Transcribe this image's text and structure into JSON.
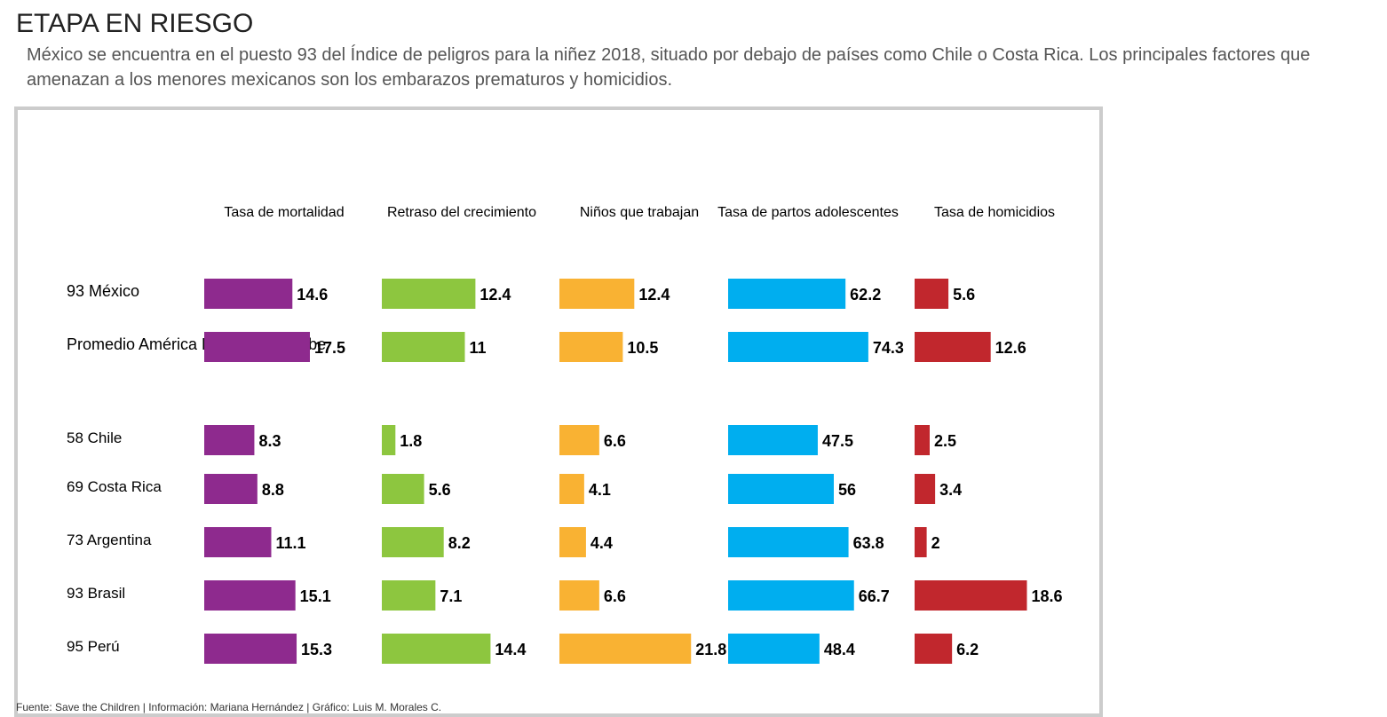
{
  "title": "ETAPA EN RIESGO",
  "subtitle": "México se encuentra en el puesto 93 del Índice de peligros para la niñez 2018, situado por debajo de países como Chile o Costa Rica. Los principales factores que amenazan a los menores mexicanos son los embarazos prematuros y homicidios.",
  "source": "Fuente: Save the Children | Información: Mariana Hernández | Gráfico: Luis M. Morales C.",
  "chart_data": {
    "type": "bar",
    "categories": [
      "México",
      "Promedio América Latina y el Caribe",
      "Chile",
      "Costa Rica",
      "Argentina",
      "Brasil",
      "Perú"
    ],
    "ranks": [
      "93",
      "",
      "58",
      "69",
      "73",
      "93",
      "95"
    ],
    "series": [
      {
        "name": "Tasa de mortalidad",
        "values": [
          14.6,
          17.5,
          8.3,
          8.8,
          11.1,
          15.1,
          15.3
        ],
        "color": "#8e2a8e",
        "max": 25
      },
      {
        "name": "Retraso del crecimiento",
        "values": [
          12.4,
          11,
          1.8,
          5.6,
          8.2,
          7.1,
          14.4
        ],
        "color": "#8dc63f",
        "max": 20
      },
      {
        "name": "Niños que trabajan",
        "values": [
          12.4,
          10.5,
          6.6,
          4.1,
          4.4,
          6.6,
          21.8
        ],
        "color": "#f9b233",
        "max": 25
      },
      {
        "name": "Tasa de partos adolescentes",
        "values": [
          62.2,
          74.3,
          47.5,
          56,
          63.8,
          66.7,
          48.4
        ],
        "color": "#00aeef",
        "max": 80
      },
      {
        "name": "Tasa de homicidios",
        "values": [
          5.6,
          12.6,
          2.5,
          3.4,
          2,
          18.6,
          6.2
        ],
        "color": "#c1272d",
        "max": 25
      }
    ]
  }
}
